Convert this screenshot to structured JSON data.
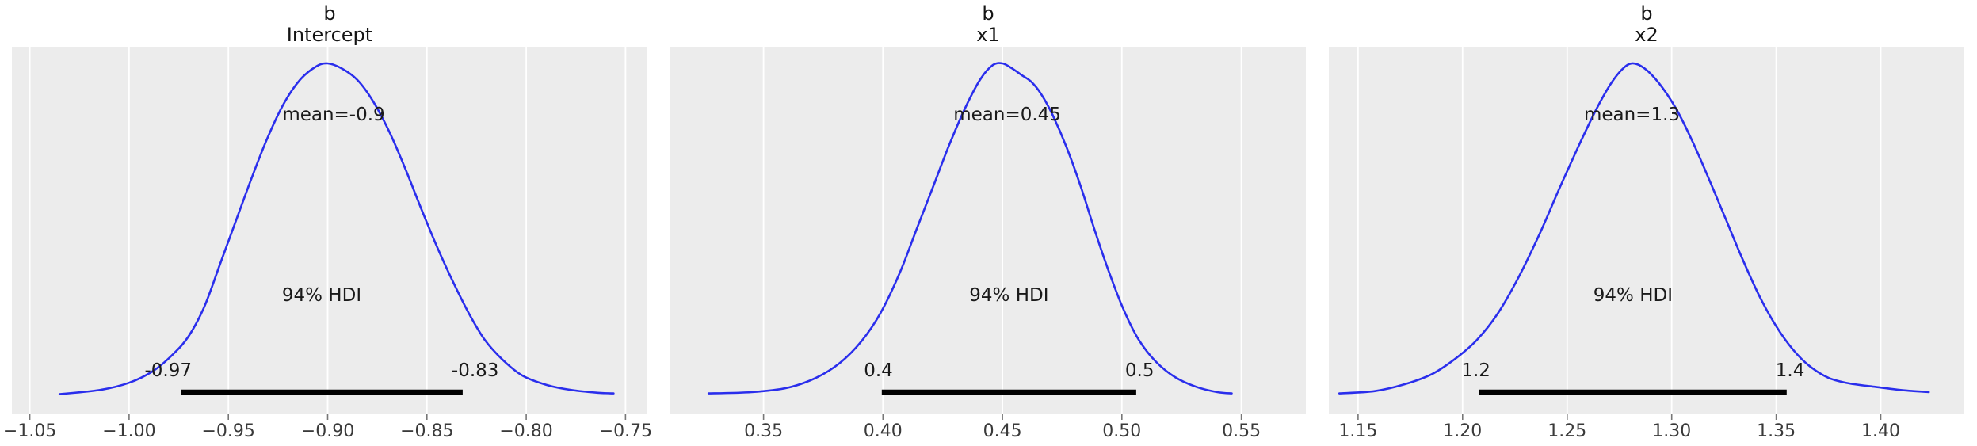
{
  "figure": {
    "background": "#ffffff",
    "panel_background": "#ececec",
    "grid_color": "#ffffff",
    "curve_color": "#2a2eec",
    "hdi_bar_color": "#000000",
    "annotation_color": "#1a1a1a",
    "tick_label_color": "#3a3a3a",
    "tick_mark_color": "#777777"
  },
  "chart_data": [
    {
      "type": "area",
      "kind": "posterior-kde",
      "title": "b",
      "subtitle": "Intercept",
      "mean_label": "mean=-0.9",
      "mean_value": -0.897,
      "hdi_text": "94% HDI",
      "hdi_lower_label": "-0.97",
      "hdi_upper_label": "-0.83",
      "hdi_bar": [
        -0.974,
        -0.832
      ],
      "xlim": [
        -1.059,
        -0.739
      ],
      "xticks": [
        -1.05,
        -1.0,
        -0.95,
        -0.9,
        -0.85,
        -0.8,
        -0.75
      ],
      "xtick_labels": [
        "−1.05",
        "−1.00",
        "−0.95",
        "−0.90",
        "−0.85",
        "−0.80",
        "−0.75"
      ],
      "kde": {
        "x": [
          -1.035,
          -1.015,
          -1.0,
          -0.988,
          -0.978,
          -0.97,
          -0.962,
          -0.954,
          -0.946,
          -0.938,
          -0.93,
          -0.922,
          -0.914,
          -0.906,
          -0.9,
          -0.893,
          -0.885,
          -0.877,
          -0.869,
          -0.861,
          -0.853,
          -0.845,
          -0.837,
          -0.829,
          -0.821,
          -0.812,
          -0.802,
          -0.79,
          -0.777,
          -0.764,
          -0.756
        ],
        "density": [
          0.006,
          0.018,
          0.04,
          0.075,
          0.125,
          0.18,
          0.27,
          0.4,
          0.53,
          0.66,
          0.78,
          0.88,
          0.95,
          0.99,
          1.0,
          0.985,
          0.95,
          0.885,
          0.795,
          0.685,
          0.565,
          0.45,
          0.345,
          0.25,
          0.17,
          0.11,
          0.062,
          0.034,
          0.018,
          0.01,
          0.008
        ]
      }
    },
    {
      "type": "area",
      "kind": "posterior-kde",
      "title": "b",
      "subtitle": "x1",
      "mean_label": "mean=0.45",
      "mean_value": 0.452,
      "hdi_text": "94% HDI",
      "hdi_lower_label": "0.4",
      "hdi_upper_label": "0.5",
      "hdi_bar": [
        0.3995,
        0.506
      ],
      "xlim": [
        0.311,
        0.577
      ],
      "xticks": [
        0.35,
        0.4,
        0.45,
        0.5,
        0.55
      ],
      "xtick_labels": [
        "0.35",
        "0.40",
        "0.45",
        "0.50",
        "0.55"
      ],
      "kde": {
        "x": [
          0.327,
          0.345,
          0.36,
          0.372,
          0.382,
          0.391,
          0.399,
          0.407,
          0.414,
          0.421,
          0.428,
          0.435,
          0.441,
          0.446,
          0.45,
          0.454,
          0.458,
          0.462,
          0.466,
          0.471,
          0.477,
          0.483,
          0.489,
          0.495,
          0.501,
          0.507,
          0.514,
          0.522,
          0.531,
          0.54,
          0.546
        ],
        "density": [
          0.008,
          0.012,
          0.025,
          0.055,
          0.1,
          0.165,
          0.25,
          0.37,
          0.5,
          0.63,
          0.76,
          0.875,
          0.955,
          0.995,
          1.0,
          0.985,
          0.965,
          0.945,
          0.91,
          0.845,
          0.745,
          0.625,
          0.49,
          0.365,
          0.255,
          0.17,
          0.105,
          0.058,
          0.028,
          0.012,
          0.008
        ]
      }
    },
    {
      "type": "area",
      "kind": "posterior-kde",
      "title": "b",
      "subtitle": "x2",
      "mean_label": "mean=1.3",
      "mean_value": 1.281,
      "hdi_text": "94% HDI",
      "hdi_lower_label": "1.2",
      "hdi_upper_label": "1.4",
      "hdi_bar": [
        1.208,
        1.355
      ],
      "xlim": [
        1.136,
        1.44
      ],
      "xticks": [
        1.15,
        1.2,
        1.25,
        1.3,
        1.35,
        1.4
      ],
      "xtick_labels": [
        "1.15",
        "1.20",
        "1.25",
        "1.30",
        "1.35",
        "1.40"
      ],
      "kde": {
        "x": [
          1.141,
          1.158,
          1.172,
          1.185,
          1.196,
          1.207,
          1.217,
          1.227,
          1.237,
          1.246,
          1.255,
          1.263,
          1.27,
          1.276,
          1.281,
          1.287,
          1.294,
          1.302,
          1.31,
          1.318,
          1.326,
          1.334,
          1.342,
          1.35,
          1.358,
          1.366,
          1.375,
          1.385,
          1.397,
          1.41,
          1.423
        ],
        "density": [
          0.008,
          0.015,
          0.035,
          0.065,
          0.11,
          0.17,
          0.25,
          0.36,
          0.49,
          0.62,
          0.745,
          0.85,
          0.93,
          0.98,
          1.0,
          0.985,
          0.94,
          0.865,
          0.765,
          0.65,
          0.53,
          0.41,
          0.3,
          0.21,
          0.14,
          0.09,
          0.055,
          0.038,
          0.028,
          0.018,
          0.012
        ]
      }
    }
  ]
}
